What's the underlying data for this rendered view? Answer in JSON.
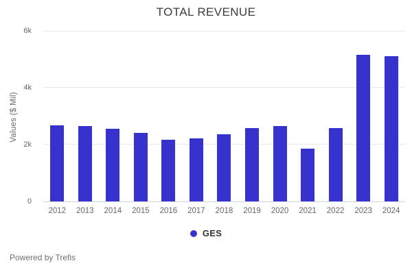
{
  "chart": {
    "title": "TOTAL REVENUE",
    "y_axis_title": "Values ($ Mil)",
    "legend_label": "GES",
    "footer": "Powered by Trefis"
  },
  "chart_data": {
    "type": "bar",
    "title": "TOTAL REVENUE",
    "xlabel": "",
    "ylabel": "Values ($ Mil)",
    "categories": [
      "2012",
      "2013",
      "2014",
      "2015",
      "2016",
      "2017",
      "2018",
      "2019",
      "2020",
      "2021",
      "2022",
      "2023",
      "2024"
    ],
    "series": [
      {
        "name": "GES",
        "values": [
          2680,
          2650,
          2560,
          2410,
          2170,
          2210,
          2360,
          2580,
          2660,
          1860,
          2580,
          5150,
          5110
        ]
      }
    ],
    "ylim": [
      0,
      6000
    ],
    "yticks": [
      {
        "label": "6k",
        "value": 6000
      },
      {
        "label": "4k",
        "value": 4000
      },
      {
        "label": "2k",
        "value": 2000
      },
      {
        "label": "0",
        "value": 0
      }
    ],
    "grid": "horizontal",
    "legend_position": "bottom",
    "bar_color": "#3732cd",
    "grid_color": "#e7e7e7",
    "baseline_color": "#ccd6e0"
  }
}
